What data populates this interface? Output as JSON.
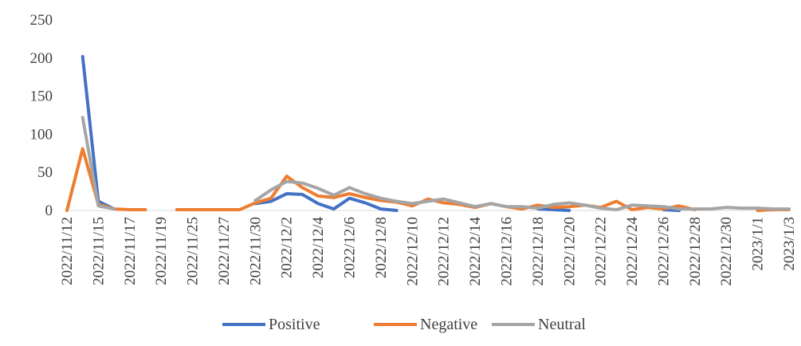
{
  "chart_data": {
    "type": "line",
    "title": "",
    "xlabel": "",
    "ylabel": "",
    "ylim": [
      0,
      250
    ],
    "yticks": [
      0,
      50,
      100,
      150,
      200,
      250
    ],
    "grid": false,
    "legend_position": "bottom",
    "x": [
      "2022/11/12",
      "2022/11/14",
      "2022/11/15",
      "2022/11/16",
      "2022/11/17",
      "2022/11/18",
      "2022/11/19",
      "2022/11/24",
      "2022/11/25",
      "2022/11/26",
      "2022/11/27",
      "2022/11/28",
      "2022/11/30",
      "2022/12/1",
      "2022/12/2",
      "2022/12/3",
      "2022/12/4",
      "2022/12/5",
      "2022/12/6",
      "2022/12/7",
      "2022/12/8",
      "2022/12/9",
      "2022/12/10",
      "2022/12/11",
      "2022/12/12",
      "2022/12/13",
      "2022/12/14",
      "2022/12/15",
      "2022/12/16",
      "2022/12/17",
      "2022/12/18",
      "2022/12/19",
      "2022/12/20",
      "2022/12/21",
      "2022/12/22",
      "2022/12/23",
      "2022/12/24",
      "2022/12/25",
      "2022/12/26",
      "2022/12/27",
      "2022/12/28",
      "2022/12/29",
      "2022/12/30",
      "2022/12/31",
      "2023/1/1",
      "2023/1/2",
      "2023/1/3"
    ],
    "x_tick_labels": [
      "2022/11/12",
      "2022/11/15",
      "2022/11/17",
      "2022/11/19",
      "2022/11/25",
      "2022/11/27",
      "2022/11/30",
      "2022/12/2",
      "2022/12/4",
      "2022/12/6",
      "2022/12/8",
      "2022/12/10",
      "2022/12/12",
      "2022/12/14",
      "2022/12/16",
      "2022/12/18",
      "2022/12/20",
      "2022/12/22",
      "2022/12/24",
      "2022/12/26",
      "2022/12/28",
      "2022/12/30",
      "2023/1/1",
      "2023/1/3"
    ],
    "series": [
      {
        "name": "Positive",
        "color": "#4472C4",
        "values": [
          null,
          202,
          12,
          2,
          null,
          null,
          null,
          null,
          null,
          null,
          null,
          null,
          9,
          12,
          22,
          21,
          9,
          2,
          16,
          10,
          2,
          0,
          null,
          null,
          null,
          null,
          null,
          null,
          null,
          null,
          2,
          1,
          0,
          null,
          null,
          null,
          null,
          null,
          1,
          0,
          null,
          null,
          null,
          null,
          null,
          null,
          null
        ]
      },
      {
        "name": "Negative",
        "color": "#ED7D31",
        "values": [
          0,
          81,
          8,
          2,
          1,
          1,
          null,
          1,
          1,
          1,
          1,
          1,
          10,
          16,
          45,
          30,
          19,
          17,
          22,
          17,
          13,
          11,
          6,
          15,
          10,
          8,
          4,
          9,
          5,
          2,
          7,
          4,
          5,
          7,
          4,
          12,
          1,
          4,
          2,
          6,
          1,
          null,
          null,
          null,
          0,
          1,
          1
        ]
      },
      {
        "name": "Neutral",
        "color": "#A5A5A5",
        "values": [
          null,
          122,
          6,
          2,
          null,
          null,
          null,
          null,
          null,
          null,
          null,
          null,
          13,
          27,
          38,
          36,
          29,
          20,
          30,
          22,
          16,
          12,
          9,
          12,
          15,
          10,
          5,
          9,
          5,
          5,
          3,
          8,
          10,
          7,
          3,
          1,
          7,
          6,
          5,
          2,
          2,
          2,
          4,
          3,
          3,
          2,
          2
        ]
      }
    ]
  }
}
